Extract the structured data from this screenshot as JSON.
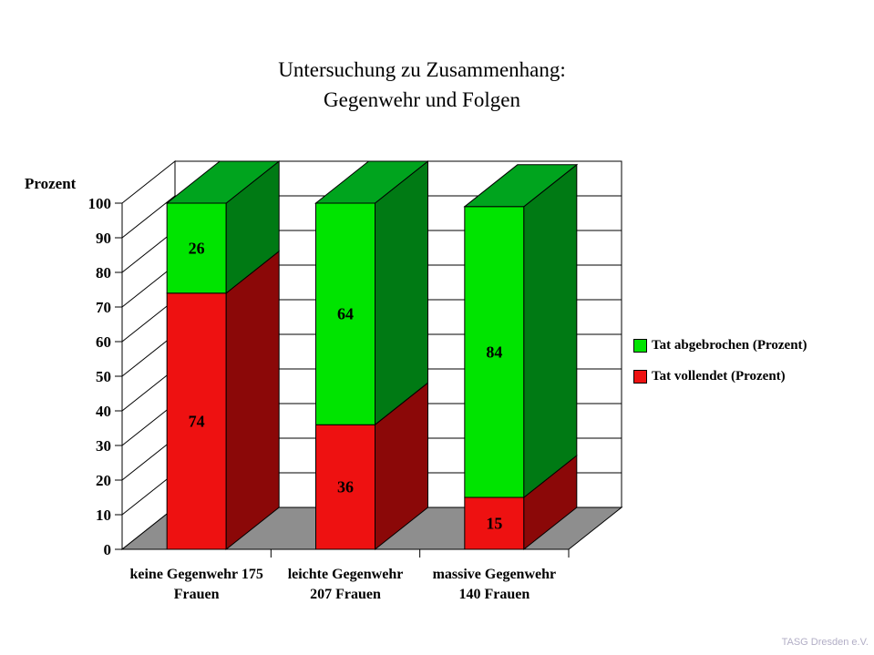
{
  "title": {
    "line1": "Untersuchung zu Zusammenhang:",
    "line2": "Gegenwehr und Folgen"
  },
  "footer": {
    "credit": "TASG Dresden e.V.",
    "color": "#b2aec6"
  },
  "chart_data": {
    "type": "bar",
    "variant": "3d-stacked",
    "title": "Untersuchung zu Zusammenhang: Gegenwehr und Folgen",
    "ylabel": "Prozent",
    "ylim": [
      0,
      100
    ],
    "ytick_step": 10,
    "grid": true,
    "legend_position": "right",
    "wall_color": "#ffffff",
    "floor_color": "#8e8e8e",
    "outline_color": "#000000",
    "categories": [
      {
        "line1": "keine Gegenwehr 175",
        "line2": "Frauen"
      },
      {
        "line1": "leichte Gegenwehr",
        "line2": "207 Frauen"
      },
      {
        "line1": "massive Gegenwehr",
        "line2": "140 Frauen"
      }
    ],
    "series": [
      {
        "name": "Tat abgebrochen (Prozent)",
        "stack": "top",
        "values": [
          26,
          64,
          84
        ],
        "colors": {
          "front": "#00e400",
          "side": "#007a14",
          "top": "#00a41e"
        }
      },
      {
        "name": "Tat vollendet (Prozent)",
        "stack": "bottom",
        "values": [
          74,
          36,
          15
        ],
        "colors": {
          "front": "#ee1111",
          "side": "#8b0808",
          "top": "#a00b0b"
        }
      }
    ]
  }
}
